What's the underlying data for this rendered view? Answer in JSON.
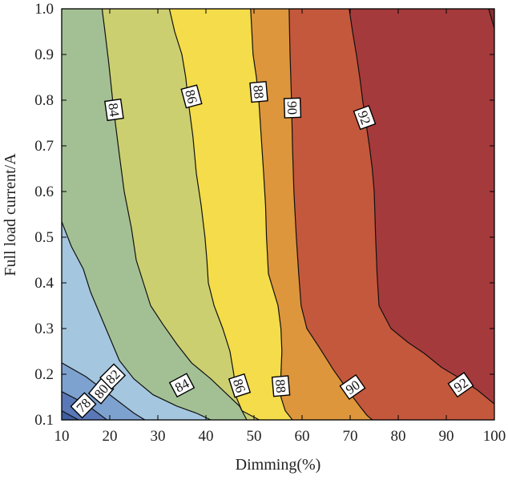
{
  "chart_data": {
    "type": "contour",
    "xlabel": "Dimming(%)",
    "ylabel": "Full load current/A",
    "xlim": [
      10,
      100
    ],
    "ylim": [
      0.1,
      1.0
    ],
    "xticks": [
      "10",
      "20",
      "30",
      "40",
      "50",
      "60",
      "70",
      "80",
      "90",
      "100"
    ],
    "yticks": [
      "0.1",
      "0.2",
      "0.3",
      "0.4",
      "0.5",
      "0.6",
      "0.7",
      "0.8",
      "0.9",
      "1.0"
    ],
    "grid": false,
    "levels": [
      {
        "value": 78,
        "points": [
          [
            10,
            0.12
          ],
          [
            13.5,
            0.1
          ]
        ]
      },
      {
        "value": 80,
        "points": [
          [
            10,
            0.162
          ],
          [
            15,
            0.135
          ],
          [
            19.4,
            0.1
          ]
        ]
      },
      {
        "value": 82,
        "points": [
          [
            10,
            0.225
          ],
          [
            15,
            0.195
          ],
          [
            20,
            0.155
          ],
          [
            25,
            0.115
          ],
          [
            27.3,
            0.1
          ]
        ]
      },
      {
        "value": 84,
        "points": [
          [
            10,
            0.534
          ],
          [
            12,
            0.48
          ],
          [
            14.5,
            0.43
          ],
          [
            16,
            0.38
          ],
          [
            18,
            0.33
          ],
          [
            20,
            0.28
          ],
          [
            22,
            0.23
          ],
          [
            25,
            0.19
          ],
          [
            29,
            0.155
          ],
          [
            34,
            0.13
          ],
          [
            38,
            0.115
          ],
          [
            41,
            0.1
          ]
        ]
      },
      {
        "value": 84,
        "points": [
          [
            18.4,
            1.0
          ],
          [
            19,
            0.95
          ],
          [
            19.8,
            0.88
          ],
          [
            20.8,
            0.78
          ],
          [
            22,
            0.68
          ],
          [
            23,
            0.6
          ],
          [
            24.5,
            0.52
          ],
          [
            25.5,
            0.45
          ],
          [
            27,
            0.4
          ],
          [
            28.5,
            0.35
          ],
          [
            31,
            0.31
          ],
          [
            34,
            0.265
          ],
          [
            37,
            0.225
          ],
          [
            41,
            0.19
          ],
          [
            44,
            0.16
          ],
          [
            47,
            0.13
          ],
          [
            48.5,
            0.1
          ]
        ]
      },
      {
        "value": 86,
        "points": [
          [
            32.4,
            1.0
          ],
          [
            33.5,
            0.95
          ],
          [
            35,
            0.9
          ],
          [
            35.8,
            0.85
          ],
          [
            36.3,
            0.8
          ],
          [
            37.3,
            0.72
          ],
          [
            38,
            0.64
          ],
          [
            39,
            0.57
          ],
          [
            39.8,
            0.5
          ],
          [
            40.2,
            0.45
          ],
          [
            40.5,
            0.4
          ],
          [
            41.7,
            0.35
          ],
          [
            43.5,
            0.3
          ],
          [
            45,
            0.25
          ],
          [
            45.8,
            0.2
          ],
          [
            46.3,
            0.15
          ],
          [
            47.5,
            0.12
          ],
          [
            51.1,
            0.1
          ]
        ]
      },
      {
        "value": 88,
        "points": [
          [
            49.3,
            1.0
          ],
          [
            49.8,
            0.9
          ],
          [
            50.5,
            0.85
          ],
          [
            51,
            0.8
          ],
          [
            51.5,
            0.72
          ],
          [
            52,
            0.64
          ],
          [
            52.4,
            0.57
          ],
          [
            52.6,
            0.5
          ],
          [
            53,
            0.42
          ],
          [
            55,
            0.35
          ],
          [
            55.6,
            0.3
          ],
          [
            55.8,
            0.25
          ],
          [
            55.6,
            0.2
          ],
          [
            55.6,
            0.15
          ],
          [
            56.5,
            0.12
          ],
          [
            58,
            0.1
          ]
        ]
      },
      {
        "value": 90,
        "points": [
          [
            57.3,
            1.0
          ],
          [
            57.5,
            0.9
          ],
          [
            57.8,
            0.8
          ],
          [
            58,
            0.7
          ],
          [
            58.3,
            0.6
          ],
          [
            58.8,
            0.5
          ],
          [
            59.3,
            0.42
          ],
          [
            59.8,
            0.35
          ],
          [
            61,
            0.3
          ],
          [
            63.5,
            0.26
          ],
          [
            66.5,
            0.21
          ],
          [
            69.5,
            0.165
          ],
          [
            72,
            0.13
          ],
          [
            73.5,
            0.11
          ],
          [
            74.6,
            0.1
          ]
        ]
      },
      {
        "value": 92,
        "points": [
          [
            69.8,
            1.0
          ],
          [
            70.5,
            0.95
          ],
          [
            71.3,
            0.9
          ],
          [
            72,
            0.85
          ],
          [
            72.6,
            0.8
          ],
          [
            73.3,
            0.75
          ],
          [
            74,
            0.7
          ],
          [
            74.6,
            0.65
          ],
          [
            75,
            0.6
          ],
          [
            75.3,
            0.5
          ],
          [
            75.6,
            0.42
          ],
          [
            76,
            0.35
          ],
          [
            78.5,
            0.3
          ],
          [
            82,
            0.27
          ],
          [
            85.5,
            0.245
          ],
          [
            89,
            0.215
          ],
          [
            93,
            0.19
          ],
          [
            96.5,
            0.165
          ],
          [
            100,
            0.135
          ]
        ]
      },
      {
        "value": 94,
        "points": [
          [
            98.8,
            1.0
          ],
          [
            100,
            0.957
          ]
        ]
      }
    ],
    "bands": [
      {
        "range": "< 78",
        "color": "#3e5fa0"
      },
      {
        "range": "78-80",
        "color": "#5a78b7"
      },
      {
        "range": "80-82",
        "color": "#7ea2cf"
      },
      {
        "range": "82-84",
        "color": "#a4c6df"
      },
      {
        "range": "84-86",
        "color": "#a3c095"
      },
      {
        "range": "86-88",
        "color": "#cbcf70"
      },
      {
        "range": "88-90",
        "color": "#f4dc4a"
      },
      {
        "range": "90-92",
        "color": "#dd963c"
      },
      {
        "range": "92-94",
        "color": "#c4583c"
      },
      {
        "range": "94-96",
        "color": "#a53a3c"
      },
      {
        "range": "> 96",
        "color": "#86302f"
      }
    ],
    "contour_labels": [
      {
        "text": "78",
        "x": 14.5,
        "y": 0.132,
        "rotation": -45
      },
      {
        "text": "80",
        "x": 18.2,
        "y": 0.163,
        "rotation": -50
      },
      {
        "text": "82",
        "x": 20.6,
        "y": 0.195,
        "rotation": -45
      },
      {
        "text": "84",
        "x": 20.9,
        "y": 0.779,
        "rotation": 82
      },
      {
        "text": "84",
        "x": 35.0,
        "y": 0.176,
        "rotation": -28
      },
      {
        "text": "86",
        "x": 37.0,
        "y": 0.808,
        "rotation": 75
      },
      {
        "text": "86",
        "x": 47.0,
        "y": 0.175,
        "rotation": 72
      },
      {
        "text": "88",
        "x": 51.0,
        "y": 0.818,
        "rotation": 85
      },
      {
        "text": "88",
        "x": 55.6,
        "y": 0.174,
        "rotation": 85
      },
      {
        "text": "90",
        "x": 58.0,
        "y": 0.783,
        "rotation": 88
      },
      {
        "text": "90",
        "x": 70.5,
        "y": 0.172,
        "rotation": -35
      },
      {
        "text": "92",
        "x": 73.0,
        "y": 0.762,
        "rotation": 70
      },
      {
        "text": "92",
        "x": 93.0,
        "y": 0.177,
        "rotation": -35
      }
    ]
  }
}
